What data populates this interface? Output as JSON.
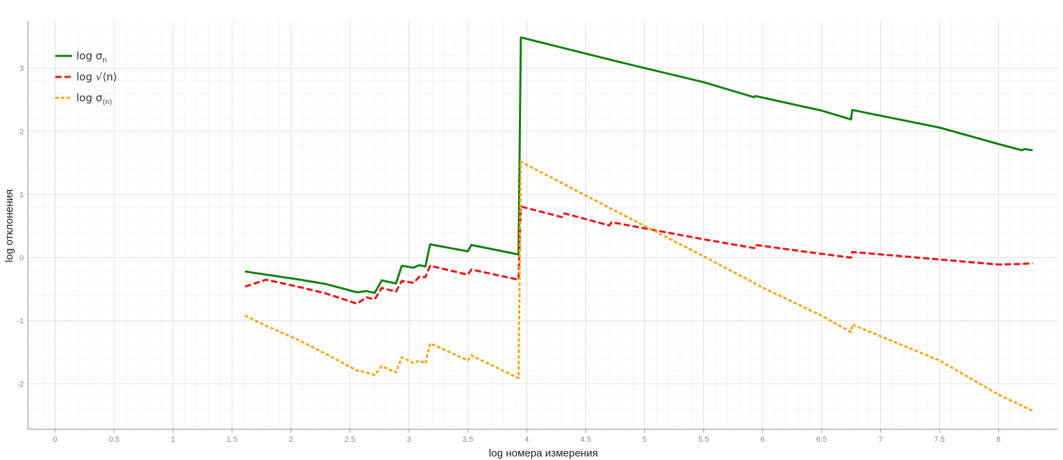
{
  "chart_data": {
    "type": "line",
    "title": "",
    "xlabel": "log номера измерения",
    "ylabel": "log отклонения",
    "xlim": [
      -0.23,
      8.5
    ],
    "ylim": [
      -2.72,
      3.75
    ],
    "grid": true,
    "legend_position": "top-left",
    "x_ticks": [
      0,
      0.5,
      1,
      1.5,
      2,
      2.5,
      3,
      3.5,
      4,
      4.5,
      5,
      5.5,
      6,
      6.5,
      7,
      7.5,
      8
    ],
    "x_tick_labels": [
      "0",
      "0.5",
      "1",
      "1.5",
      "2",
      "2.5",
      "3",
      "3.5",
      "4",
      "4.5",
      "5",
      "5.5",
      "6",
      "6.5",
      "7",
      "7.5",
      "8"
    ],
    "y_ticks": [
      -2,
      -1,
      0,
      1,
      2,
      3
    ],
    "y_tick_labels": [
      "-2",
      "-1",
      "0",
      "1",
      "2",
      "3"
    ],
    "series": [
      {
        "name": "log σn",
        "legend_main": "log σ",
        "legend_sub": "n",
        "color": "#138013",
        "dash": "solid",
        "x": [
          1.61,
          1.79,
          2.08,
          2.3,
          2.56,
          2.64,
          2.71,
          2.77,
          2.89,
          2.94,
          3.04,
          3.09,
          3.14,
          3.18,
          3.5,
          3.53,
          3.93,
          3.95,
          4.7,
          4.72,
          5.5,
          5.93,
          5.94,
          6.5,
          6.75,
          6.76,
          7.5,
          8.0,
          8.2,
          8.22,
          8.29
        ],
        "y": [
          -0.22,
          -0.27,
          -0.35,
          -0.42,
          -0.55,
          -0.53,
          -0.56,
          -0.36,
          -0.41,
          -0.13,
          -0.16,
          -0.12,
          -0.14,
          0.21,
          0.1,
          0.2,
          0.05,
          3.49,
          3.14,
          3.13,
          2.78,
          2.54,
          2.56,
          2.33,
          2.19,
          2.34,
          2.06,
          1.8,
          1.7,
          1.72,
          1.7
        ]
      },
      {
        "name": "log √⟨n⟩",
        "legend_main": "log √⟨n⟩",
        "legend_sub": "",
        "color": "#ee1111",
        "dash": "dashed",
        "x": [
          1.61,
          1.79,
          2.08,
          2.3,
          2.56,
          2.64,
          2.71,
          2.77,
          2.89,
          2.94,
          3.04,
          3.09,
          3.14,
          3.18,
          3.5,
          3.53,
          3.93,
          3.95,
          4.3,
          4.32,
          4.7,
          4.72,
          5.5,
          5.93,
          5.94,
          6.5,
          6.75,
          6.76,
          7.5,
          8.0,
          8.2,
          8.29
        ],
        "y": [
          -0.46,
          -0.35,
          -0.47,
          -0.57,
          -0.73,
          -0.63,
          -0.66,
          -0.48,
          -0.54,
          -0.37,
          -0.4,
          -0.3,
          -0.31,
          -0.13,
          -0.27,
          -0.19,
          -0.35,
          0.81,
          0.64,
          0.7,
          0.51,
          0.56,
          0.29,
          0.15,
          0.2,
          0.06,
          0.0,
          0.09,
          -0.03,
          -0.11,
          -0.1,
          -0.09
        ]
      },
      {
        "name": "log σ⟨n⟩",
        "legend_main": "log σ",
        "legend_sub": "⟨n⟩",
        "color": "#f5a614",
        "dash": "dotted",
        "x": [
          1.61,
          1.79,
          2.08,
          2.3,
          2.56,
          2.64,
          2.71,
          2.77,
          2.89,
          2.94,
          3.04,
          3.09,
          3.14,
          3.18,
          3.5,
          3.53,
          3.93,
          3.95,
          4.7,
          5.5,
          5.93,
          5.94,
          6.5,
          6.75,
          6.76,
          7.5,
          8.0,
          8.29
        ],
        "y": [
          -0.92,
          -1.08,
          -1.32,
          -1.53,
          -1.79,
          -1.82,
          -1.86,
          -1.72,
          -1.82,
          -1.58,
          -1.67,
          -1.63,
          -1.68,
          -1.36,
          -1.63,
          -1.55,
          -1.91,
          1.52,
          0.79,
          0.02,
          -0.4,
          -0.42,
          -0.92,
          -1.18,
          -1.06,
          -1.63,
          -2.17,
          -2.43
        ]
      }
    ]
  }
}
